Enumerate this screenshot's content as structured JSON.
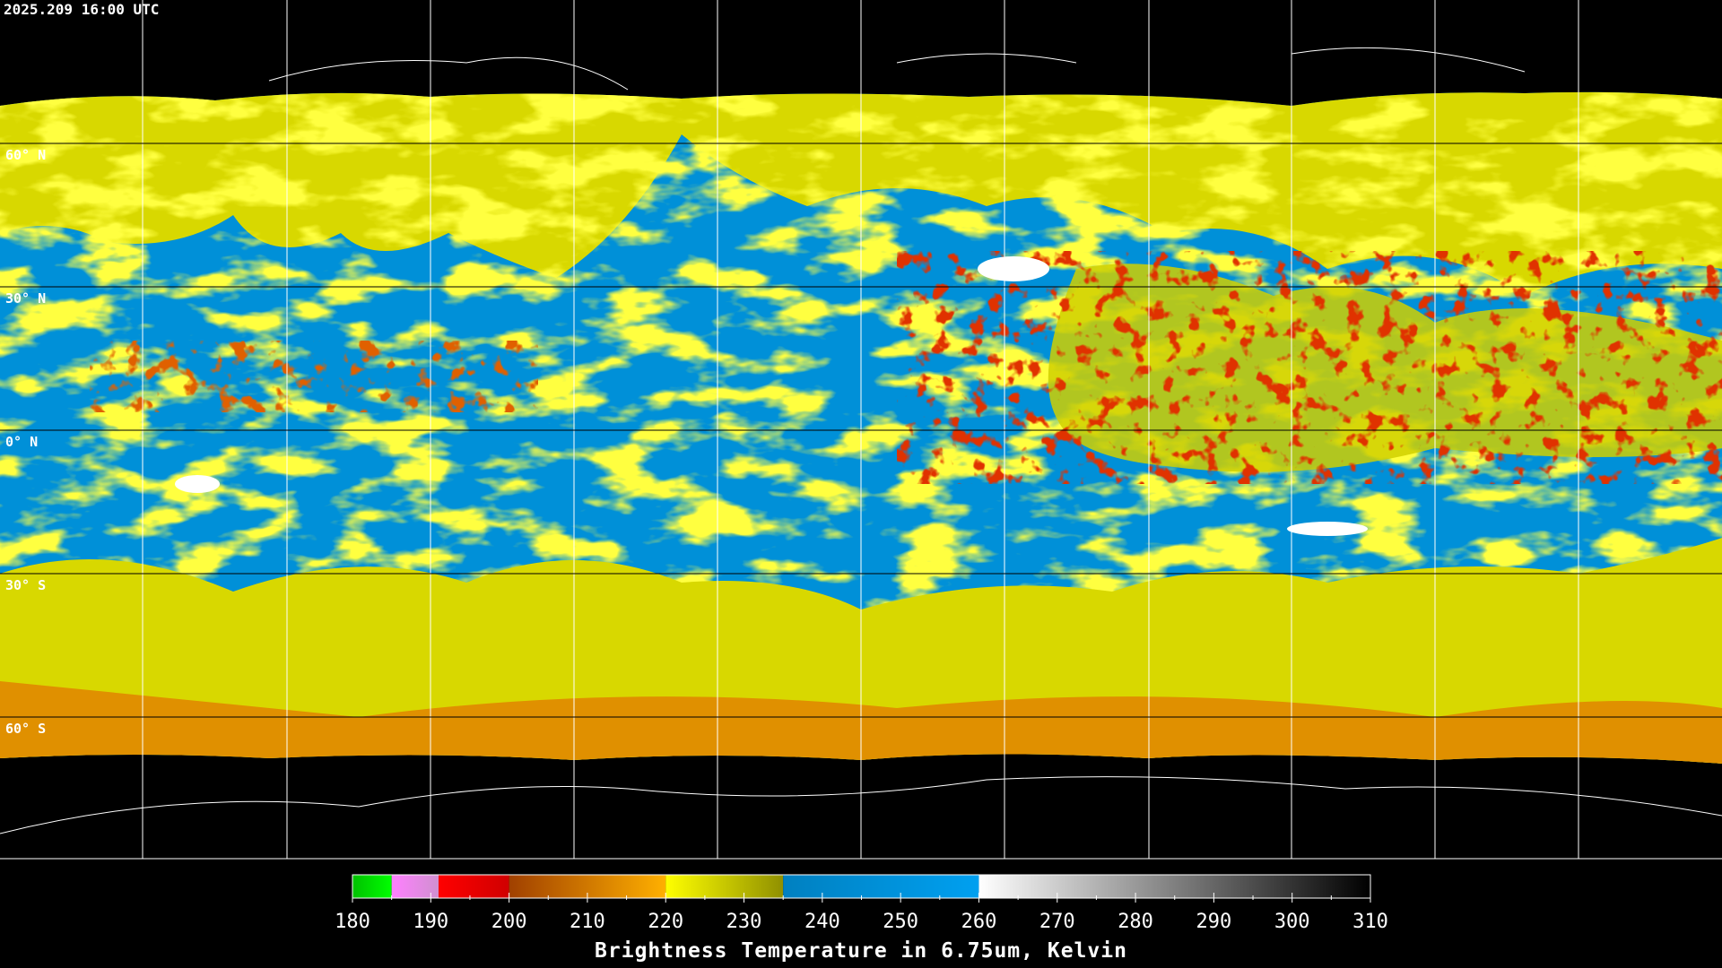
{
  "timestamp": "2025.209 16:00 UTC",
  "latitude_labels": [
    "60° N",
    "30° N",
    "0° N",
    "30° S",
    "60° S"
  ],
  "colorbar": {
    "title": "Brightness Temperature in 6.75um, Kelvin",
    "range": [
      180,
      310
    ],
    "ticks": [
      180,
      190,
      200,
      210,
      220,
      230,
      240,
      250,
      260,
      270,
      280,
      290,
      300,
      310
    ],
    "segments": [
      {
        "from": 180,
        "to": 185,
        "colors": [
          "#00c000",
          "#00ff00"
        ]
      },
      {
        "from": 185,
        "to": 191,
        "colors": [
          "#ff80ff",
          "#d090d0"
        ]
      },
      {
        "from": 191,
        "to": 200,
        "colors": [
          "#ff0000",
          "#d00000"
        ]
      },
      {
        "from": 200,
        "to": 220,
        "colors": [
          "#a04000",
          "#ffb000"
        ]
      },
      {
        "from": 220,
        "to": 235,
        "colors": [
          "#ffff00",
          "#909000"
        ]
      },
      {
        "from": 235,
        "to": 260,
        "colors": [
          "#0080c0",
          "#00a0f0"
        ]
      },
      {
        "from": 260,
        "to": 310,
        "colors": [
          "#ffffff",
          "#000000"
        ]
      }
    ]
  }
}
